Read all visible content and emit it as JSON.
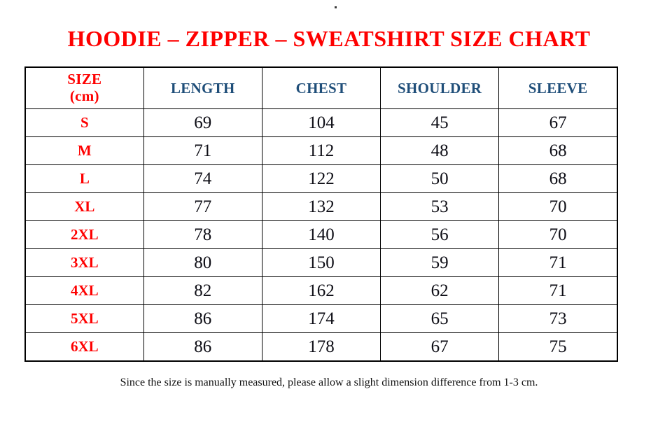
{
  "page": {
    "stray_dot": ".",
    "title": "HOODIE – ZIPPER – SWEATSHIRT SIZE CHART",
    "footer_note": "Since the size is manually measured, please allow a slight dimension difference from 1-3 cm."
  },
  "colors": {
    "title_red": "#fe0000",
    "size_label_red": "#fe0000",
    "header_blue": "#1f4e79",
    "data_text": "#0d0d15",
    "table_border": "#000000",
    "background": "#ffffff"
  },
  "table": {
    "header": {
      "size_label_line1": "SIZE",
      "size_label_line2": "(cm)",
      "columns": [
        "LENGTH",
        "CHEST",
        "SHOULDER",
        "SLEEVE"
      ]
    },
    "rows": [
      {
        "size": "S",
        "length": "69",
        "chest": "104",
        "shoulder": "45",
        "sleeve": "67"
      },
      {
        "size": "M",
        "length": "71",
        "chest": "112",
        "shoulder": "48",
        "sleeve": "68"
      },
      {
        "size": "L",
        "length": "74",
        "chest": "122",
        "shoulder": "50",
        "sleeve": "68"
      },
      {
        "size": "XL",
        "length": "77",
        "chest": "132",
        "shoulder": "53",
        "sleeve": "70"
      },
      {
        "size": "2XL",
        "length": "78",
        "chest": "140",
        "shoulder": "56",
        "sleeve": "70"
      },
      {
        "size": "3XL",
        "length": "80",
        "chest": "150",
        "shoulder": "59",
        "sleeve": "71"
      },
      {
        "size": "4XL",
        "length": "82",
        "chest": "162",
        "shoulder": "62",
        "sleeve": "71"
      },
      {
        "size": "5XL",
        "length": "86",
        "chest": "174",
        "shoulder": "65",
        "sleeve": "73"
      },
      {
        "size": "6XL",
        "length": "86",
        "chest": "178",
        "shoulder": "67",
        "sleeve": "75"
      }
    ]
  },
  "chart_data": {
    "type": "table",
    "title": "HOODIE – ZIPPER – SWEATSHIRT SIZE CHART",
    "columns": [
      "SIZE (cm)",
      "LENGTH",
      "CHEST",
      "SHOULDER",
      "SLEEVE"
    ],
    "rows": [
      [
        "S",
        69,
        104,
        45,
        67
      ],
      [
        "M",
        71,
        112,
        48,
        68
      ],
      [
        "L",
        74,
        122,
        50,
        68
      ],
      [
        "XL",
        77,
        132,
        53,
        70
      ],
      [
        "2XL",
        78,
        140,
        56,
        70
      ],
      [
        "3XL",
        80,
        150,
        59,
        71
      ],
      [
        "4XL",
        82,
        162,
        62,
        71
      ],
      [
        "5XL",
        86,
        174,
        65,
        73
      ],
      [
        "6XL",
        86,
        178,
        67,
        75
      ]
    ],
    "note": "Since the size is manually measured, please allow a slight dimension difference from 1-3 cm."
  }
}
